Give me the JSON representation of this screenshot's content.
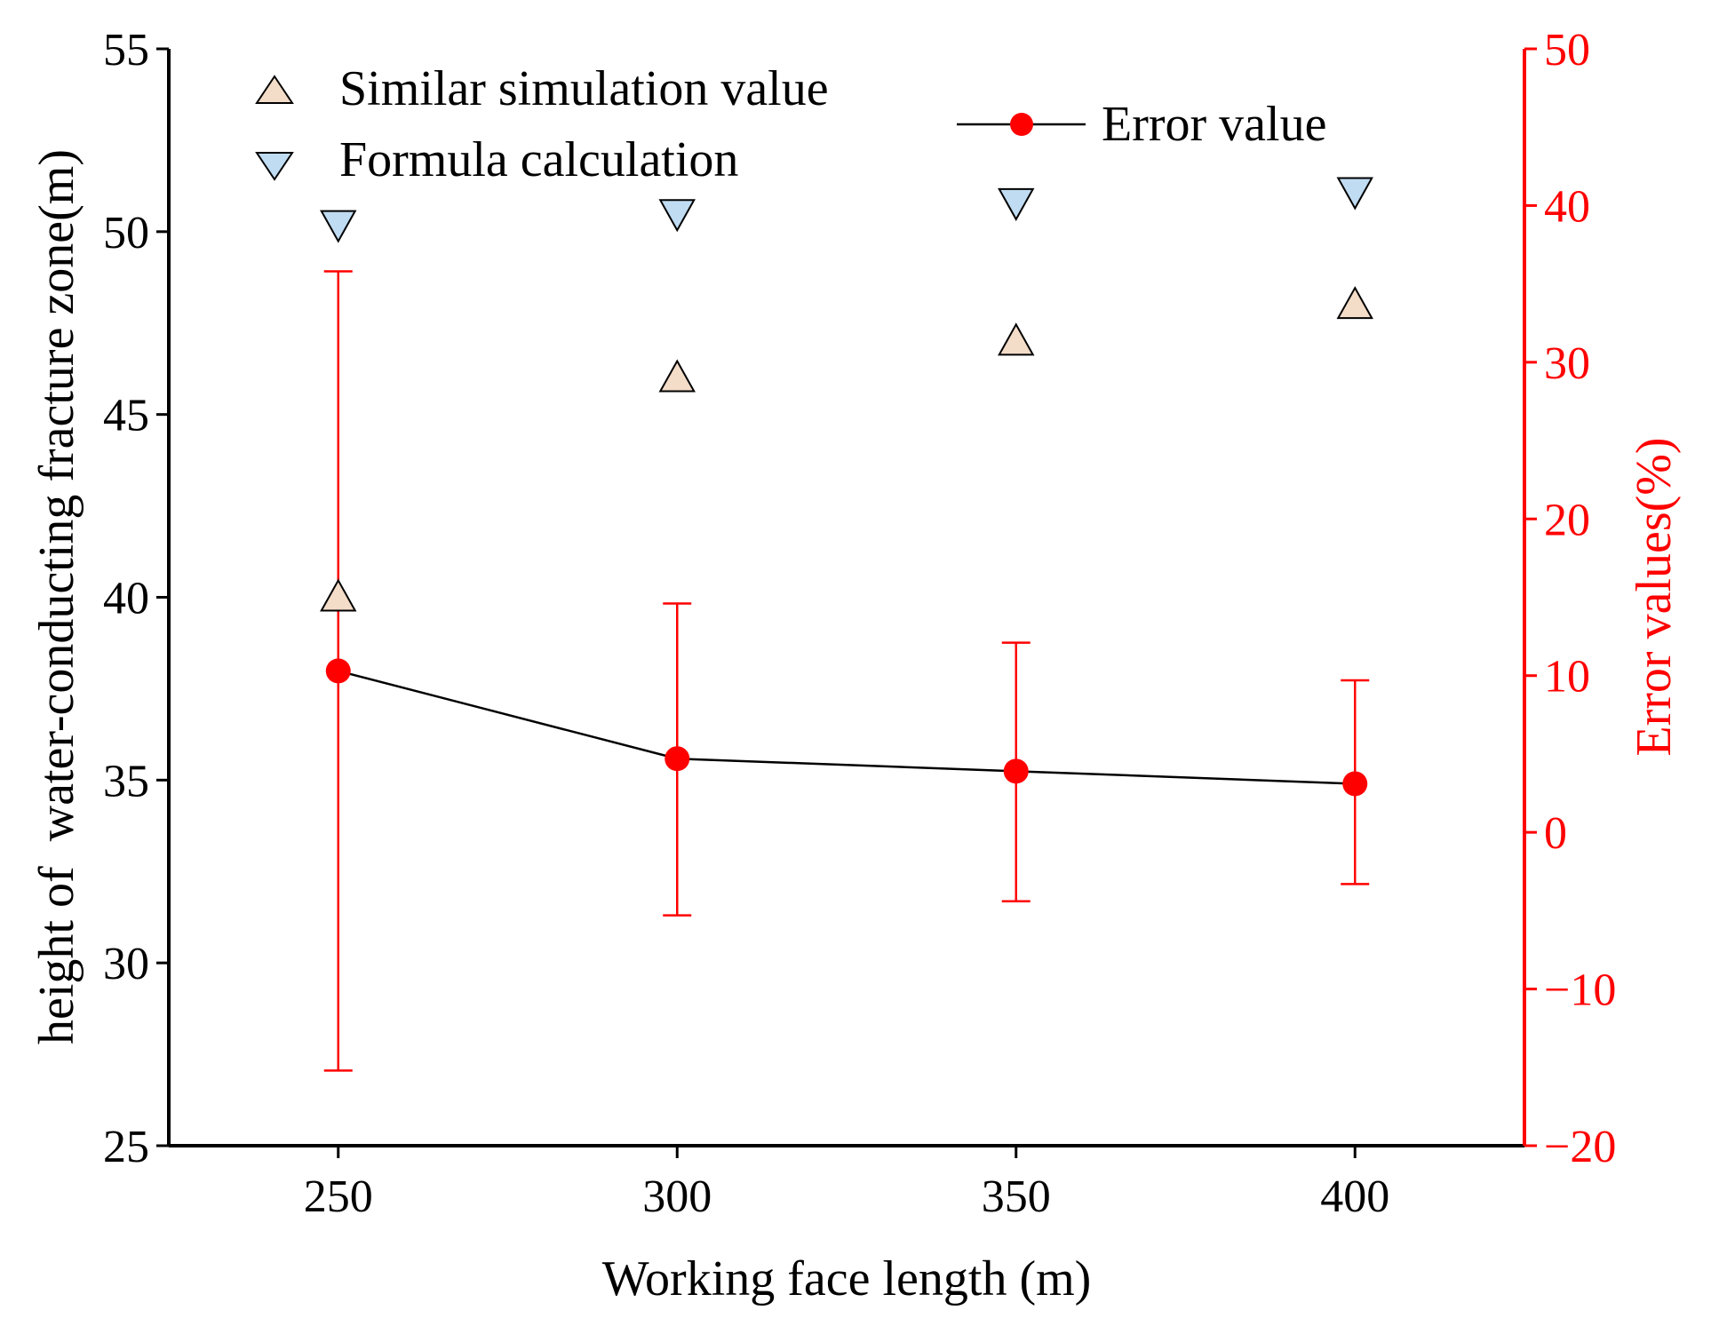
{
  "chart_data": {
    "type": "scatter",
    "title": "",
    "xlabel": "Working face length (m)",
    "ylabel_left": "height of  water-conducting fracture zone(m)",
    "ylabel_right": "Error values(%)",
    "xlim": [
      225,
      425
    ],
    "ylim_left": [
      25,
      55
    ],
    "ylim_right": [
      -20,
      50
    ],
    "x_ticks": [
      250,
      300,
      350,
      400
    ],
    "y_left_ticks": [
      25,
      30,
      35,
      40,
      45,
      50,
      55
    ],
    "y_right_ticks": [
      -20,
      -10,
      0,
      10,
      20,
      30,
      40,
      50
    ],
    "x": [
      250,
      300,
      350,
      400
    ],
    "series": [
      {
        "name": "Similar simulation value",
        "axis": "left",
        "marker": "triangle-up",
        "color": "#f3dcc8",
        "values": [
          40,
          46,
          47,
          48
        ]
      },
      {
        "name": "Formula calculation",
        "axis": "left",
        "marker": "triangle-down",
        "color": "#bfdcf2",
        "values": [
          50.2,
          50.5,
          50.8,
          51.1
        ]
      },
      {
        "name": "Error value",
        "axis": "right",
        "marker": "circle-line",
        "color": "#ff0000",
        "line_color": "#000000",
        "values": [
          10.3,
          4.7,
          3.9,
          3.1
        ],
        "error_low": [
          -15.2,
          -5.3,
          -4.4,
          -3.3
        ],
        "error_high": [
          35.8,
          14.6,
          12.1,
          9.7
        ]
      }
    ],
    "axis_colors": {
      "left": "#000000",
      "right": "#ff0000"
    },
    "legend": [
      "Similar simulation value",
      "Formula calculation",
      "Error value"
    ]
  }
}
